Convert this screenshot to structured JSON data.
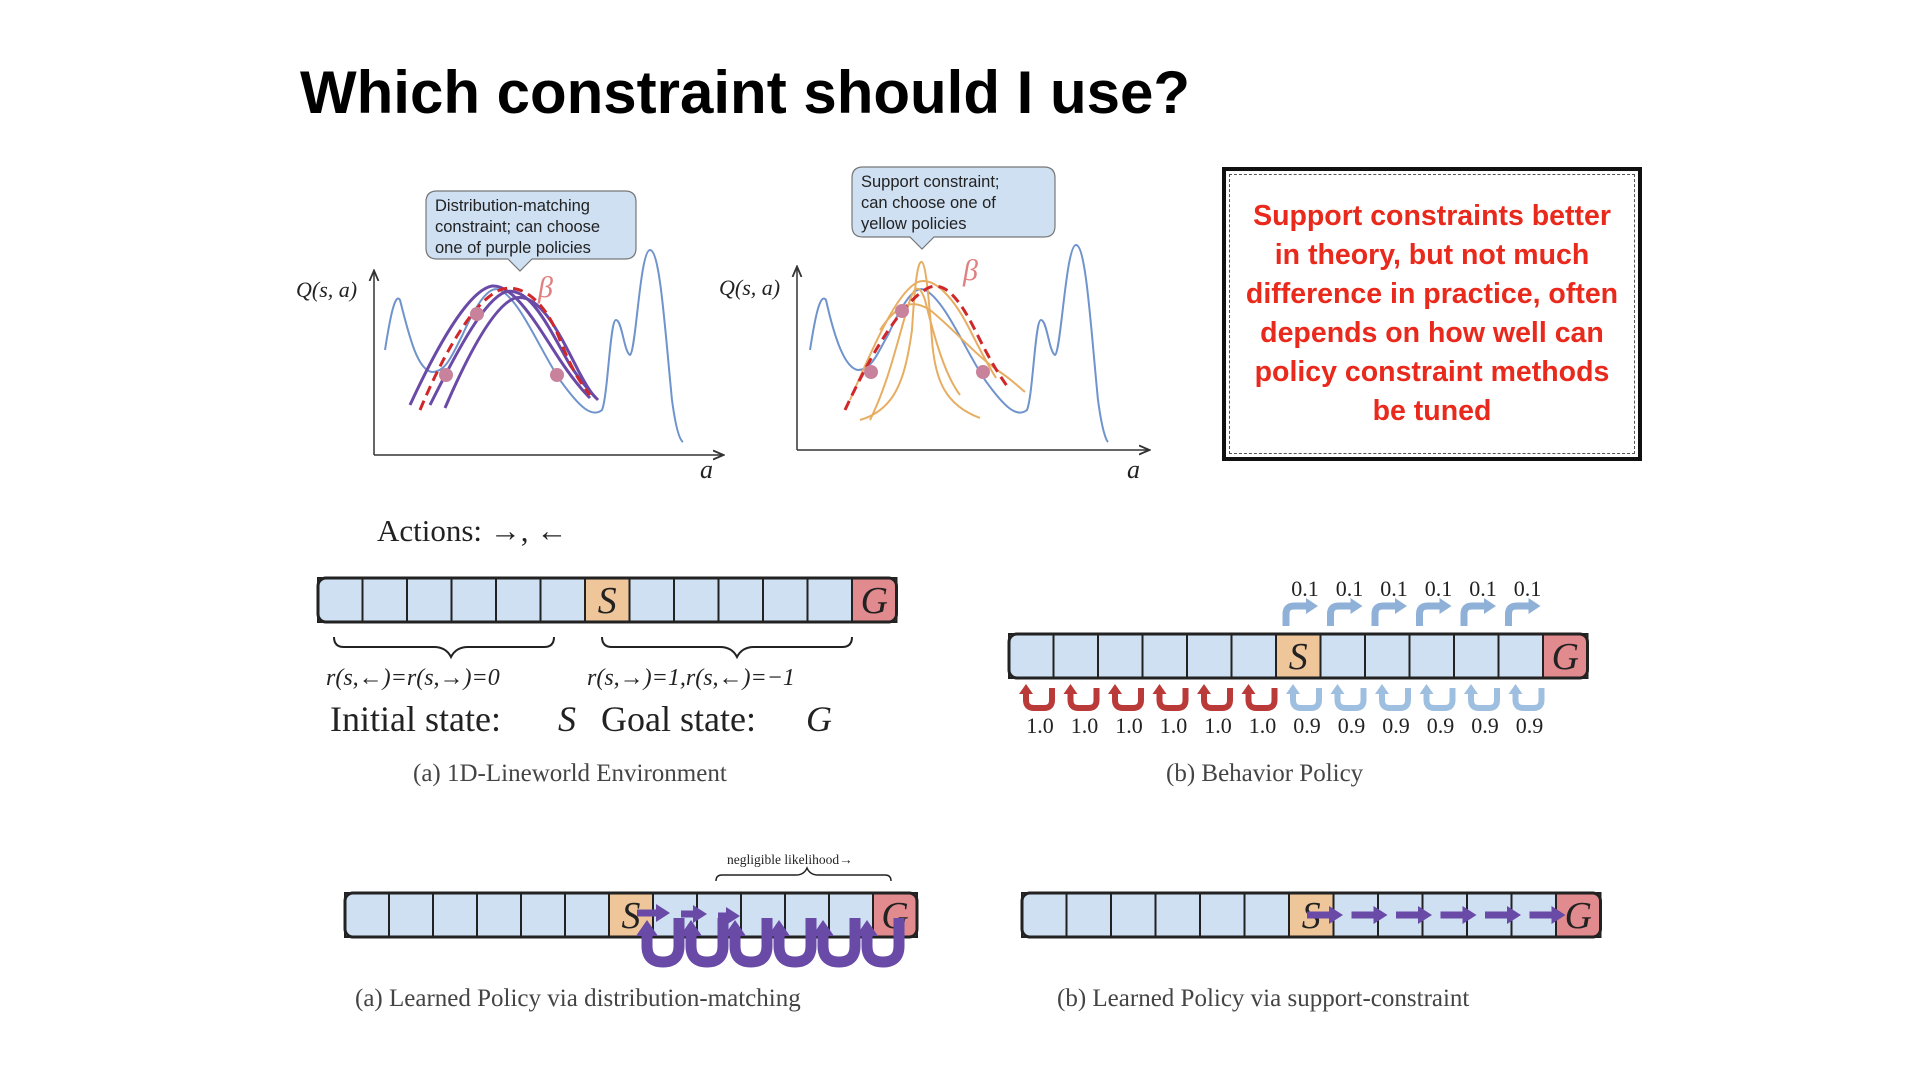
{
  "slide": {
    "title": "Which constraint should I use?",
    "callout": "Support constraints better in theory, but not much difference in practice, often depends on how well can policy constraint methods be tuned"
  },
  "plots": {
    "left": {
      "ylabel": "Q(s, a)",
      "xlabel": "a",
      "beta": "β",
      "bubble": [
        "Distribution-matching",
        "constraint; can choose",
        "one of purple policies"
      ]
    },
    "right": {
      "ylabel": "Q(s, a)",
      "xlabel": "a",
      "beta": "β",
      "bubble": [
        "Support constraint;",
        "can choose one of",
        "yellow policies"
      ]
    }
  },
  "environment": {
    "actions": "Actions: →, ←",
    "start": "S",
    "goal": "G",
    "reward_left": "r(s,←)=r(s,→)=0",
    "reward_right": "r(s,→)=1,r(s,←)=−1",
    "initial_label": "Initial state:",
    "initial_symbol": "S",
    "goal_label": "Goal state:",
    "goal_symbol": "G",
    "caption": "(a) 1D-Lineworld Environment"
  },
  "behavior": {
    "start": "S",
    "goal": "G",
    "top_probs": [
      "0.1",
      "0.1",
      "0.1",
      "0.1",
      "0.1",
      "0.1"
    ],
    "bottom_probs": [
      "1.0",
      "1.0",
      "1.0",
      "1.0",
      "1.0",
      "1.0",
      "0.9",
      "0.9",
      "0.9",
      "0.9",
      "0.9",
      "0.9"
    ],
    "caption": "(b) Behavior Policy"
  },
  "learned_dm": {
    "start": "S",
    "goal": "G",
    "annotation": "negligible likelihood→",
    "caption": "(a) Learned Policy via distribution-matching"
  },
  "learned_sc": {
    "start": "S",
    "goal": "G",
    "caption": "(b) Learned Policy via support-constraint"
  },
  "colors": {
    "cell": "#cfe0f3",
    "start": "#efc69a",
    "goal": "#e28b8e",
    "purple": "#6a4aa7",
    "red_arrow": "#b93a38",
    "q_curve": "#6f93cc",
    "beta": "#d0282a",
    "yellow": "#e7ae63",
    "callout_text": "#e8291c"
  }
}
